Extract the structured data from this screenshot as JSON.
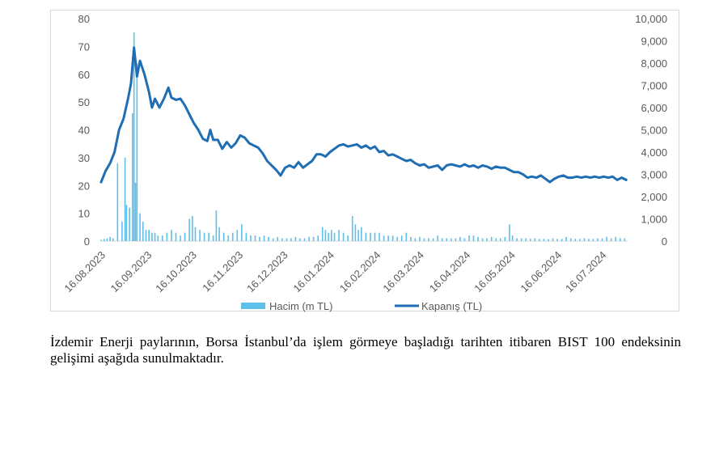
{
  "chart_data": {
    "type": "bar+line",
    "title": "",
    "x_tick_labels": [
      "16.08.2023",
      "16.09.2023",
      "16.10.2023",
      "16.11.2023",
      "16.12.2023",
      "16.01.2024",
      "16.02.2024",
      "16.03.2024",
      "16.04.2024",
      "16.05.2024",
      "16.06.2024",
      "16.07.2024"
    ],
    "left_axis": {
      "ticks": [
        "0",
        "10",
        "20",
        "30",
        "40",
        "50",
        "60",
        "70",
        "80"
      ],
      "range": [
        0,
        80
      ]
    },
    "right_axis": {
      "ticks": [
        "0",
        "1,000",
        "2,000",
        "3,000",
        "4,000",
        "5,000",
        "6,000",
        "7,000",
        "8,000",
        "9,000",
        "10,000"
      ],
      "range": [
        0,
        10000
      ]
    },
    "legend": [
      "Hacim (m TL)",
      "Kapanış (TL)"
    ],
    "legend_position": "bottom",
    "colors": {
      "volume": "#5ebfe9",
      "price": "#1f6eb3",
      "grid": "#d9d9d9",
      "axis_text": "#595959"
    },
    "series": [
      {
        "name": "Kapanış (TL)",
        "axis": "right",
        "kind": "line",
        "points": [
          [
            "2023-08-16",
            2650
          ],
          [
            "2023-08-19",
            3150
          ],
          [
            "2023-08-22",
            3500
          ],
          [
            "2023-08-25",
            4000
          ],
          [
            "2023-08-28",
            5000
          ],
          [
            "2023-08-31",
            5500
          ],
          [
            "2023-09-03",
            6400
          ],
          [
            "2023-09-05",
            7100
          ],
          [
            "2023-09-07",
            8700
          ],
          [
            "2023-09-09",
            7400
          ],
          [
            "2023-09-11",
            8100
          ],
          [
            "2023-09-14",
            7500
          ],
          [
            "2023-09-17",
            6700
          ],
          [
            "2023-09-19",
            6000
          ],
          [
            "2023-09-21",
            6400
          ],
          [
            "2023-09-24",
            6000
          ],
          [
            "2023-09-27",
            6400
          ],
          [
            "2023-09-30",
            6900
          ],
          [
            "2023-10-02",
            6450
          ],
          [
            "2023-10-05",
            6350
          ],
          [
            "2023-10-08",
            6400
          ],
          [
            "2023-10-11",
            6100
          ],
          [
            "2023-10-14",
            5700
          ],
          [
            "2023-10-17",
            5300
          ],
          [
            "2023-10-20",
            5000
          ],
          [
            "2023-10-23",
            4600
          ],
          [
            "2023-10-26",
            4500
          ],
          [
            "2023-10-28",
            5000
          ],
          [
            "2023-10-30",
            4550
          ],
          [
            "2023-11-02",
            4550
          ],
          [
            "2023-11-05",
            4150
          ],
          [
            "2023-11-08",
            4450
          ],
          [
            "2023-11-11",
            4200
          ],
          [
            "2023-11-14",
            4400
          ],
          [
            "2023-11-17",
            4750
          ],
          [
            "2023-11-20",
            4650
          ],
          [
            "2023-11-23",
            4400
          ],
          [
            "2023-11-26",
            4300
          ],
          [
            "2023-11-29",
            4200
          ],
          [
            "2023-12-02",
            3950
          ],
          [
            "2023-12-05",
            3600
          ],
          [
            "2023-12-08",
            3400
          ],
          [
            "2023-12-11",
            3200
          ],
          [
            "2023-12-14",
            2950
          ],
          [
            "2023-12-17",
            3300
          ],
          [
            "2023-12-20",
            3400
          ],
          [
            "2023-12-23",
            3300
          ],
          [
            "2023-12-26",
            3550
          ],
          [
            "2023-12-29",
            3300
          ],
          [
            "2024-01-01",
            3450
          ],
          [
            "2024-01-04",
            3600
          ],
          [
            "2024-01-07",
            3900
          ],
          [
            "2024-01-10",
            3900
          ],
          [
            "2024-01-13",
            3800
          ],
          [
            "2024-01-16",
            4000
          ],
          [
            "2024-01-19",
            4150
          ],
          [
            "2024-01-22",
            4300
          ],
          [
            "2024-01-25",
            4350
          ],
          [
            "2024-01-28",
            4250
          ],
          [
            "2024-01-31",
            4300
          ],
          [
            "2024-02-03",
            4350
          ],
          [
            "2024-02-06",
            4200
          ],
          [
            "2024-02-09",
            4300
          ],
          [
            "2024-02-12",
            4150
          ],
          [
            "2024-02-15",
            4250
          ],
          [
            "2024-02-18",
            4000
          ],
          [
            "2024-02-21",
            4050
          ],
          [
            "2024-02-24",
            3850
          ],
          [
            "2024-02-27",
            3900
          ],
          [
            "2024-03-01",
            3800
          ],
          [
            "2024-03-04",
            3700
          ],
          [
            "2024-03-07",
            3600
          ],
          [
            "2024-03-10",
            3650
          ],
          [
            "2024-03-13",
            3500
          ],
          [
            "2024-03-16",
            3400
          ],
          [
            "2024-03-19",
            3450
          ],
          [
            "2024-03-22",
            3300
          ],
          [
            "2024-03-25",
            3350
          ],
          [
            "2024-03-28",
            3400
          ],
          [
            "2024-03-31",
            3200
          ],
          [
            "2024-04-03",
            3400
          ],
          [
            "2024-04-06",
            3450
          ],
          [
            "2024-04-09",
            3400
          ],
          [
            "2024-04-12",
            3350
          ],
          [
            "2024-04-15",
            3450
          ],
          [
            "2024-04-18",
            3350
          ],
          [
            "2024-04-21",
            3400
          ],
          [
            "2024-04-24",
            3300
          ],
          [
            "2024-04-27",
            3400
          ],
          [
            "2024-04-30",
            3350
          ],
          [
            "2024-05-03",
            3250
          ],
          [
            "2024-05-06",
            3350
          ],
          [
            "2024-05-09",
            3300
          ],
          [
            "2024-05-12",
            3300
          ],
          [
            "2024-05-15",
            3200
          ],
          [
            "2024-05-18",
            3100
          ],
          [
            "2024-05-21",
            3100
          ],
          [
            "2024-05-24",
            3000
          ],
          [
            "2024-05-27",
            2850
          ],
          [
            "2024-05-30",
            2900
          ],
          [
            "2024-06-02",
            2850
          ],
          [
            "2024-06-05",
            2950
          ],
          [
            "2024-06-08",
            2800
          ],
          [
            "2024-06-11",
            2650
          ],
          [
            "2024-06-14",
            2800
          ],
          [
            "2024-06-17",
            2900
          ],
          [
            "2024-06-20",
            2950
          ],
          [
            "2024-06-23",
            2850
          ],
          [
            "2024-06-26",
            2850
          ],
          [
            "2024-06-29",
            2900
          ],
          [
            "2024-07-02",
            2850
          ],
          [
            "2024-07-05",
            2900
          ],
          [
            "2024-07-08",
            2850
          ],
          [
            "2024-07-11",
            2900
          ],
          [
            "2024-07-14",
            2850
          ],
          [
            "2024-07-17",
            2900
          ],
          [
            "2024-07-20",
            2850
          ],
          [
            "2024-07-23",
            2900
          ],
          [
            "2024-07-26",
            2750
          ],
          [
            "2024-07-29",
            2850
          ],
          [
            "2024-08-01",
            2750
          ]
        ]
      },
      {
        "name": "Hacim (m TL)",
        "axis": "left",
        "kind": "bar",
        "points": [
          [
            "2023-08-16",
            0.5
          ],
          [
            "2023-08-18",
            0.8
          ],
          [
            "2023-08-20",
            1
          ],
          [
            "2023-08-22",
            1.5
          ],
          [
            "2023-08-24",
            1
          ],
          [
            "2023-08-27",
            28
          ],
          [
            "2023-08-30",
            7
          ],
          [
            "2023-09-01",
            30
          ],
          [
            "2023-09-02",
            13
          ],
          [
            "2023-09-04",
            12
          ],
          [
            "2023-09-06",
            46
          ],
          [
            "2023-09-07",
            75
          ],
          [
            "2023-09-08",
            21
          ],
          [
            "2023-09-09",
            64
          ],
          [
            "2023-09-11",
            10
          ],
          [
            "2023-09-13",
            7
          ],
          [
            "2023-09-15",
            4
          ],
          [
            "2023-09-17",
            4
          ],
          [
            "2023-09-19",
            3
          ],
          [
            "2023-09-21",
            3
          ],
          [
            "2023-09-23",
            2
          ],
          [
            "2023-09-26",
            2
          ],
          [
            "2023-09-29",
            3
          ],
          [
            "2023-10-02",
            4
          ],
          [
            "2023-10-05",
            3
          ],
          [
            "2023-10-08",
            2
          ],
          [
            "2023-10-11",
            3
          ],
          [
            "2023-10-14",
            8
          ],
          [
            "2023-10-16",
            9
          ],
          [
            "2023-10-18",
            5
          ],
          [
            "2023-10-21",
            4
          ],
          [
            "2023-10-24",
            3
          ],
          [
            "2023-10-27",
            3
          ],
          [
            "2023-10-30",
            2
          ],
          [
            "2023-11-01",
            11
          ],
          [
            "2023-11-03",
            5
          ],
          [
            "2023-11-06",
            3
          ],
          [
            "2023-11-09",
            2
          ],
          [
            "2023-11-12",
            3
          ],
          [
            "2023-11-15",
            4
          ],
          [
            "2023-11-18",
            6
          ],
          [
            "2023-11-21",
            3
          ],
          [
            "2023-11-24",
            2
          ],
          [
            "2023-11-27",
            2
          ],
          [
            "2023-11-30",
            1.5
          ],
          [
            "2023-12-03",
            2
          ],
          [
            "2023-12-06",
            1.5
          ],
          [
            "2023-12-09",
            1
          ],
          [
            "2023-12-12",
            1.5
          ],
          [
            "2023-12-15",
            1
          ],
          [
            "2023-12-18",
            1
          ],
          [
            "2023-12-21",
            1
          ],
          [
            "2023-12-24",
            1.5
          ],
          [
            "2023-12-27",
            1
          ],
          [
            "2023-12-30",
            1
          ],
          [
            "2024-01-02",
            1.5
          ],
          [
            "2024-01-05",
            1.5
          ],
          [
            "2024-01-08",
            2
          ],
          [
            "2024-01-11",
            5
          ],
          [
            "2024-01-13",
            4
          ],
          [
            "2024-01-15",
            3
          ],
          [
            "2024-01-17",
            4
          ],
          [
            "2024-01-19",
            3
          ],
          [
            "2024-01-22",
            4
          ],
          [
            "2024-01-25",
            3
          ],
          [
            "2024-01-28",
            2
          ],
          [
            "2024-01-31",
            9
          ],
          [
            "2024-02-02",
            6
          ],
          [
            "2024-02-04",
            4
          ],
          [
            "2024-02-06",
            5
          ],
          [
            "2024-02-09",
            3
          ],
          [
            "2024-02-12",
            3
          ],
          [
            "2024-02-15",
            3
          ],
          [
            "2024-02-18",
            3
          ],
          [
            "2024-02-21",
            2
          ],
          [
            "2024-02-24",
            2
          ],
          [
            "2024-02-27",
            2
          ],
          [
            "2024-03-01",
            1.5
          ],
          [
            "2024-03-04",
            2
          ],
          [
            "2024-03-07",
            3
          ],
          [
            "2024-03-10",
            1.5
          ],
          [
            "2024-03-13",
            1
          ],
          [
            "2024-03-16",
            1.5
          ],
          [
            "2024-03-19",
            1
          ],
          [
            "2024-03-22",
            1
          ],
          [
            "2024-03-25",
            1
          ],
          [
            "2024-03-28",
            2
          ],
          [
            "2024-03-31",
            1
          ],
          [
            "2024-04-03",
            1
          ],
          [
            "2024-04-06",
            1
          ],
          [
            "2024-04-09",
            1
          ],
          [
            "2024-04-12",
            1.5
          ],
          [
            "2024-04-15",
            1
          ],
          [
            "2024-04-18",
            2
          ],
          [
            "2024-04-21",
            2
          ],
          [
            "2024-04-24",
            1.5
          ],
          [
            "2024-04-27",
            1
          ],
          [
            "2024-04-30",
            1
          ],
          [
            "2024-05-03",
            1.5
          ],
          [
            "2024-05-06",
            1
          ],
          [
            "2024-05-09",
            1
          ],
          [
            "2024-05-12",
            1.5
          ],
          [
            "2024-05-15",
            6
          ],
          [
            "2024-05-17",
            2
          ],
          [
            "2024-05-20",
            1
          ],
          [
            "2024-05-23",
            1
          ],
          [
            "2024-05-26",
            1
          ],
          [
            "2024-05-29",
            0.8
          ],
          [
            "2024-06-01",
            1
          ],
          [
            "2024-06-04",
            0.8
          ],
          [
            "2024-06-07",
            0.8
          ],
          [
            "2024-06-10",
            0.7
          ],
          [
            "2024-06-13",
            1
          ],
          [
            "2024-06-16",
            0.8
          ],
          [
            "2024-06-19",
            0.8
          ],
          [
            "2024-06-22",
            1.5
          ],
          [
            "2024-06-25",
            1
          ],
          [
            "2024-06-28",
            0.8
          ],
          [
            "2024-07-01",
            0.8
          ],
          [
            "2024-07-04",
            1
          ],
          [
            "2024-07-07",
            0.8
          ],
          [
            "2024-07-10",
            0.8
          ],
          [
            "2024-07-13",
            1
          ],
          [
            "2024-07-16",
            1
          ],
          [
            "2024-07-19",
            1.5
          ],
          [
            "2024-07-22",
            1
          ],
          [
            "2024-07-25",
            1.5
          ],
          [
            "2024-07-28",
            1
          ],
          [
            "2024-07-31",
            1
          ]
        ]
      }
    ]
  },
  "caption": "İzdemir Enerji paylarının, Borsa İstanbul’da işlem görmeye başladığı tarihten itibaren BIST 100 endeksinin gelişimi aşağıda sunulmaktadır."
}
